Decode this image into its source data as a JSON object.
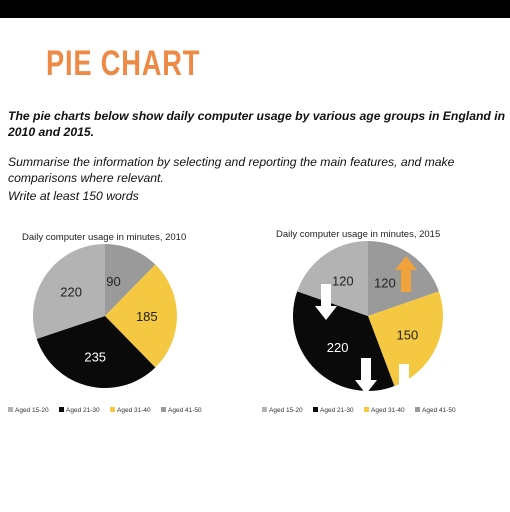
{
  "header": {
    "title": "PIE CHART"
  },
  "task": {
    "line1": "The pie charts below show daily computer usage by various age groups in England in",
    "line2": "2010 and 2015.",
    "line3": "Summarise the information by selecting and reporting the main features, and make",
    "line4": "comparisons where relevant.",
    "line5": "Write at least 150 words"
  },
  "colors": {
    "title": "#ec8a46",
    "aged_15_20": "#b3b3b3",
    "aged_21_30": "#0a0a0a",
    "aged_31_40": "#f5c842",
    "aged_41_50": "#9a9a9a",
    "arrow_up": "#f0a23c",
    "arrow_down": "#ffffff"
  },
  "chart_data": [
    {
      "type": "pie",
      "title": "Daily computer usage in minutes, 2010",
      "categories": [
        "Aged 15-20",
        "Aged 21-30",
        "Aged 31-40",
        "Aged 41-50"
      ],
      "values": [
        220,
        235,
        185,
        90
      ],
      "order_clockwise_from_top": [
        "Aged 41-50",
        "Aged 31-40",
        "Aged 21-30",
        "Aged 15-20"
      ],
      "legend": "bottom"
    },
    {
      "type": "pie",
      "title": "Daily computer usage in minutes, 2015",
      "categories": [
        "Aged 15-20",
        "Aged 21-30",
        "Aged 31-40",
        "Aged 41-50"
      ],
      "values": [
        120,
        220,
        150,
        120
      ],
      "order_clockwise_from_top": [
        "Aged 41-50",
        "Aged 31-40",
        "Aged 21-30",
        "Aged 15-20"
      ],
      "trend_arrows": {
        "Aged 15-20": "down",
        "Aged 21-30": "down",
        "Aged 31-40": "down",
        "Aged 41-50": "up"
      },
      "legend": "bottom"
    }
  ]
}
